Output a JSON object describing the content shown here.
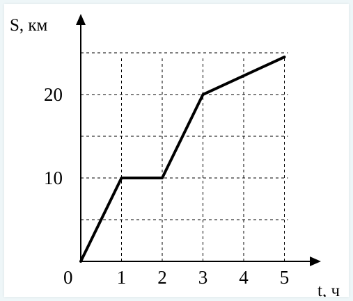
{
  "chart_data": {
    "type": "line",
    "title": "",
    "xlabel": "t, ч",
    "ylabel": "S, км",
    "origin_label": "0",
    "xlim": [
      0,
      5
    ],
    "ylim": [
      0,
      25
    ],
    "x_ticks": [
      1,
      2,
      3,
      4,
      5
    ],
    "x_tick_labels": [
      "1",
      "2",
      "3",
      "4",
      "5"
    ],
    "y_ticks": [
      10,
      20
    ],
    "y_tick_labels": [
      "10",
      "20"
    ],
    "grid": true,
    "series": [
      {
        "x": [
          0,
          1,
          2,
          3,
          5
        ],
        "y": [
          0,
          10,
          10,
          20,
          24.5
        ]
      }
    ],
    "colors": {
      "line": "#000000",
      "grid": "#000000",
      "background": "#ffffff",
      "frame": "#eef6f8"
    }
  }
}
